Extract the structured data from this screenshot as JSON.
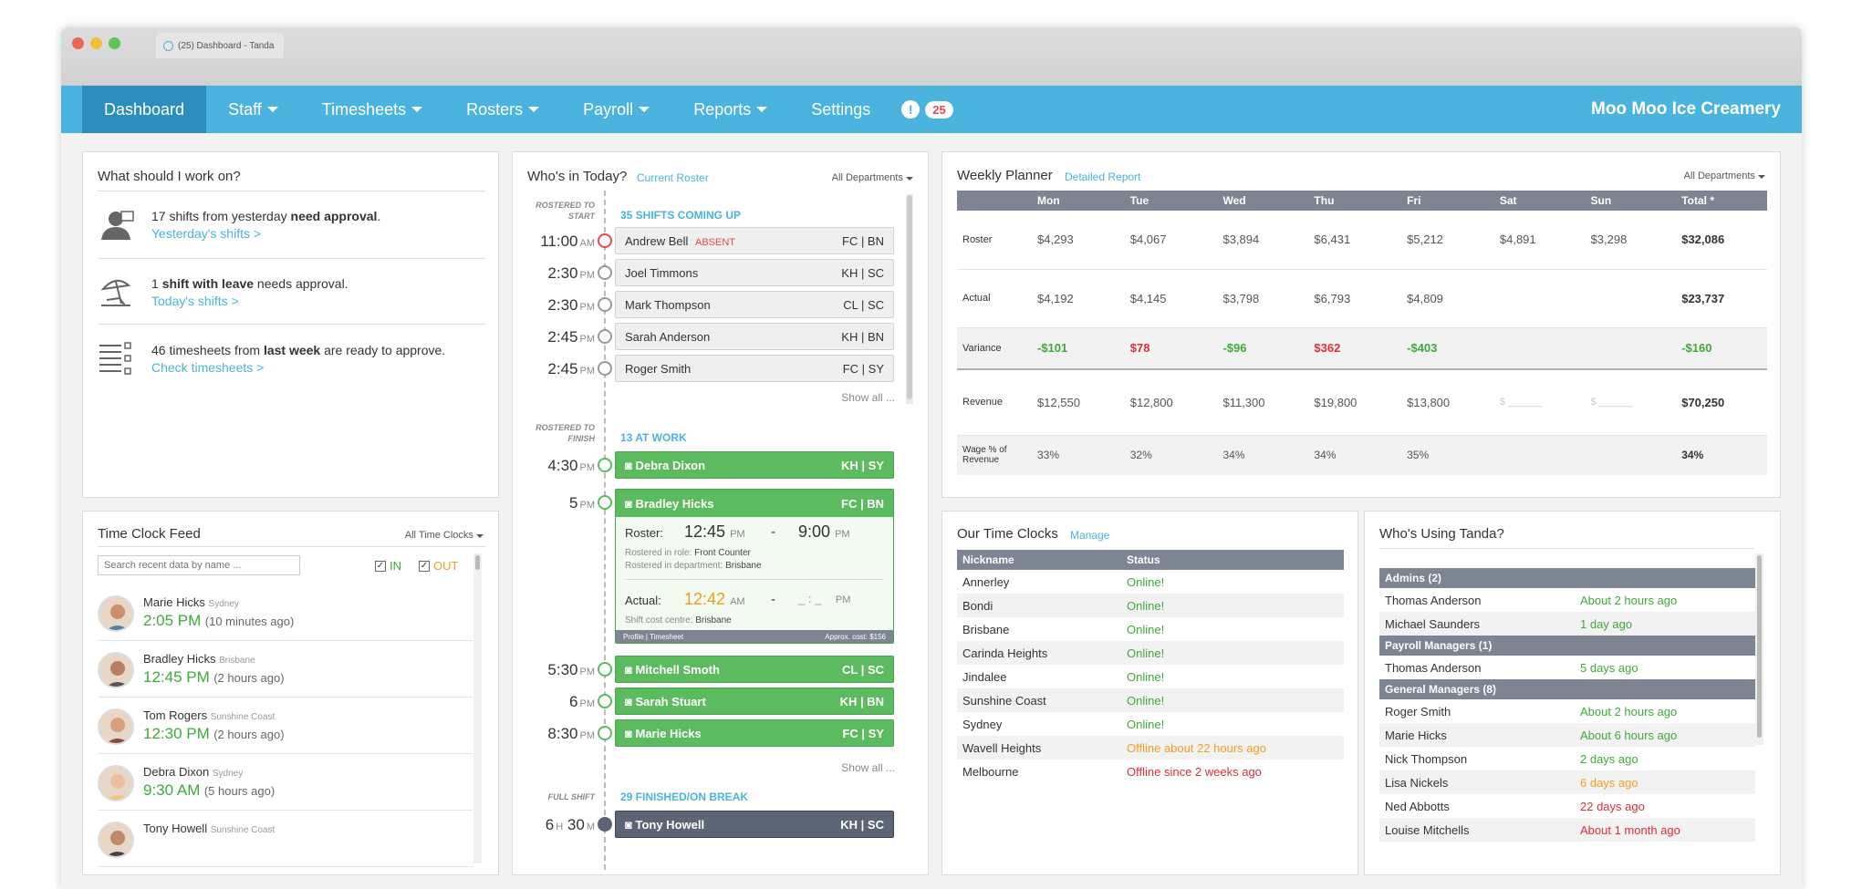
{
  "browser": {
    "tab_title": "(25) Dashboard  -  Tanda"
  },
  "nav": {
    "items": [
      "Dashboard",
      "Staff",
      "Timesheets",
      "Rosters",
      "Payroll",
      "Reports",
      "Settings"
    ],
    "alert_count": "25",
    "company": "Moo Moo Ice Creamery"
  },
  "work": {
    "title": "What should I work on?",
    "items": [
      {
        "pre": "17 shifts from yesterday ",
        "bold": "need approval",
        "post": ".",
        "link": "Yesterday's shifts >"
      },
      {
        "pre": "1 ",
        "bold": "shift with leave",
        "post": " needs approval.",
        "link": "Today's shifts >"
      },
      {
        "pre": "46 timesheets from ",
        "bold": "last week",
        "post": " are ready to approve.",
        "link": "Check timesheets >"
      }
    ]
  },
  "feed": {
    "title": "Time Clock Feed",
    "filter": "All Time Clocks",
    "search_placeholder": "Search recent data by name ...",
    "in_label": "IN",
    "out_label": "OUT",
    "entries": [
      {
        "name": "Marie Hicks",
        "loc": "Sydney",
        "time": "2:05 PM",
        "ago": "(10 minutes ago)"
      },
      {
        "name": "Bradley Hicks",
        "loc": "Brisbane",
        "time": "12:45 PM",
        "ago": "(2 hours ago)"
      },
      {
        "name": "Tom Rogers",
        "loc": "Sunshine Coast",
        "time": "12:30 PM",
        "ago": "(2 hours ago)"
      },
      {
        "name": "Debra Dixon",
        "loc": "Sydney",
        "time": "9:30 AM",
        "ago": "(5 hours ago)"
      },
      {
        "name": "Tony Howell",
        "loc": "Sunshine Coast",
        "time": "",
        "ago": ""
      }
    ]
  },
  "who": {
    "title": "Who's in Today?",
    "link": "Current Roster",
    "filter": "All Departments",
    "label_start": "ROSTERED TO START",
    "label_finish": "ROSTERED TO FINISH",
    "label_full": "FULL SHIFT",
    "coming_up": "35 SHIFTS COMING UP",
    "at_work": "13 AT WORK",
    "finished": "29 FINISHED/ON BREAK",
    "show_all": "Show all ...",
    "upcoming": [
      {
        "h": "11:00",
        "ap": "AM",
        "name": "Andrew Bell",
        "absent": "ABSENT",
        "codes": "FC  |  BN"
      },
      {
        "h": "2:30",
        "ap": "PM",
        "name": "Joel Timmons",
        "absent": "",
        "codes": "KH  |  SC"
      },
      {
        "h": "2:30",
        "ap": "PM",
        "name": "Mark Thompson",
        "absent": "",
        "codes": "CL  |  SC"
      },
      {
        "h": "2:45",
        "ap": "PM",
        "name": "Sarah Anderson",
        "absent": "",
        "codes": "KH  |  BN"
      },
      {
        "h": "2:45",
        "ap": "PM",
        "name": "Roger Smith",
        "absent": "",
        "codes": "FC  |  SY"
      }
    ],
    "atwork": [
      {
        "h": "4:30",
        "ap": "PM",
        "name": "Debra Dixon",
        "codes": "KH  |  SY"
      },
      {
        "h": "5",
        "ap": "PM",
        "name": "Bradley Hicks",
        "codes": "FC  |  BN"
      },
      {
        "h": "5:30",
        "ap": "PM",
        "name": "Mitchell Smoth",
        "codes": "CL  |  SC"
      },
      {
        "h": "6",
        "ap": "PM",
        "name": "Sarah Stuart",
        "codes": "KH  |  BN"
      },
      {
        "h": "8:30",
        "ap": "PM",
        "name": "Marie Hicks",
        "codes": "FC  |  SY"
      }
    ],
    "detail": {
      "roster_label": "Roster:",
      "roster_start": "12:45",
      "roster_start_ap": "PM",
      "dash": "-",
      "roster_end": "9:00",
      "roster_end_ap": "PM",
      "role_label": "Rostered in role:",
      "role": "Front Counter",
      "dept_label": "Rostered in department:",
      "dept": "Brisbane",
      "actual_label": "Actual:",
      "actual_start": "12:42",
      "actual_start_ap": "AM",
      "actual_end": "_ : _",
      "actual_end_ap": "PM",
      "cost_label": "Shift cost centre:",
      "cost": "Brisbane",
      "footer_left": "Profile  |  Timesheet",
      "footer_right": "Approx. cost: $156"
    },
    "full": {
      "h": "6",
      "hm": "H",
      "m": "30",
      "mm": "M",
      "name": "Tony Howell",
      "codes": "KH  |  SC"
    }
  },
  "planner": {
    "title": "Weekly Planner",
    "link": "Detailed Report",
    "filter": "All Departments",
    "headers": [
      "",
      "Mon",
      "Tue",
      "Wed",
      "Thu",
      "Fri",
      "Sat",
      "Sun",
      "Total *"
    ],
    "rows": [
      {
        "label": "Roster",
        "vals": [
          "$4,293",
          "$4,067",
          "$3,894",
          "$6,431",
          "$5,212",
          "$4,891",
          "$3,298",
          "$32,086"
        ]
      },
      {
        "label": "Actual",
        "vals": [
          "$4,192",
          "$4,145",
          "$3,798",
          "$6,793",
          "$4,809",
          "",
          "",
          "$23,737"
        ]
      },
      {
        "label": "Variance",
        "vals": [
          "-$101",
          "$78",
          "-$96",
          "$362",
          "-$403",
          "",
          "",
          "-$160"
        ]
      },
      {
        "label": "Revenue",
        "vals": [
          "$12,550",
          "$12,800",
          "$11,300",
          "$19,800",
          "$13,800",
          "$ ______",
          "$ ______",
          "$70,250"
        ]
      },
      {
        "label": "Wage % of Revenue",
        "vals": [
          "33%",
          "32%",
          "34%",
          "34%",
          "35%",
          "",
          "",
          "34%"
        ]
      }
    ]
  },
  "clocks": {
    "title": "Our Time Clocks",
    "link": "Manage",
    "headers": [
      "Nickname",
      "Status"
    ],
    "rows": [
      {
        "name": "Annerley",
        "status": "Online!",
        "cls": "online"
      },
      {
        "name": "Bondi",
        "status": "Online!",
        "cls": "online"
      },
      {
        "name": "Brisbane",
        "status": "Online!",
        "cls": "online"
      },
      {
        "name": "Carinda Heights",
        "status": "Online!",
        "cls": "online"
      },
      {
        "name": "Jindalee",
        "status": "Online!",
        "cls": "online"
      },
      {
        "name": "Sunshine Coast",
        "status": "Online!",
        "cls": "online"
      },
      {
        "name": "Sydney",
        "status": "Online!",
        "cls": "online"
      },
      {
        "name": "Wavell Heights",
        "status": "Offline about 22 hours ago",
        "cls": "warn"
      },
      {
        "name": "Melbourne",
        "status": "Offline since 2 weeks ago",
        "cls": "off"
      }
    ]
  },
  "using": {
    "title": "Who's Using Tanda?",
    "groups": [
      {
        "label": "Admins (2)",
        "rows": [
          {
            "name": "Thomas Anderson",
            "when": "About 2 hours ago",
            "cls": "online"
          },
          {
            "name": "Michael Saunders",
            "when": "1 day ago",
            "cls": "online"
          }
        ]
      },
      {
        "label": "Payroll Managers (1)",
        "rows": [
          {
            "name": "Thomas Anderson",
            "when": "5 days ago",
            "cls": "online"
          }
        ]
      },
      {
        "label": "General Managers (8)",
        "rows": [
          {
            "name": "Roger Smith",
            "when": "About 2 hours ago",
            "cls": "online"
          },
          {
            "name": "Marie Hicks",
            "when": "About 6 hours ago",
            "cls": "online"
          },
          {
            "name": "Nick Thompson",
            "when": "2 days ago",
            "cls": "online"
          },
          {
            "name": "Lisa Nickels",
            "when": "6 days ago",
            "cls": "warn"
          },
          {
            "name": "Ned Abbotts",
            "when": "22 days ago",
            "cls": "off"
          },
          {
            "name": "Louise Mitchells",
            "when": "About 1 month ago",
            "cls": "off"
          }
        ]
      }
    ]
  }
}
